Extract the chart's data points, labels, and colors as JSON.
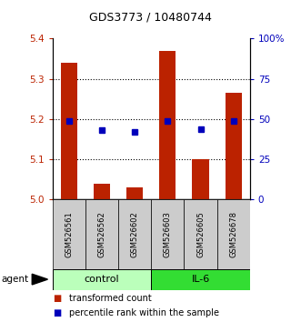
{
  "title": "GDS3773 / 10480744",
  "samples": [
    "GSM526561",
    "GSM526562",
    "GSM526602",
    "GSM526603",
    "GSM526605",
    "GSM526678"
  ],
  "groups": [
    "control",
    "control",
    "control",
    "IL-6",
    "IL-6",
    "IL-6"
  ],
  "group_colors": [
    "#bbffbb",
    "#33dd33"
  ],
  "transformed_counts": [
    5.34,
    5.04,
    5.03,
    5.37,
    5.1,
    5.265
  ],
  "percentile_ranks": [
    49,
    43,
    42,
    49,
    44,
    49
  ],
  "ylim_left": [
    5.0,
    5.4
  ],
  "ylim_right": [
    0,
    100
  ],
  "yticks_left": [
    5.0,
    5.1,
    5.2,
    5.3,
    5.4
  ],
  "yticks_right": [
    0,
    25,
    50,
    75,
    100
  ],
  "ytick_labels_right": [
    "0",
    "25",
    "50",
    "75",
    "100%"
  ],
  "gridline_ticks": [
    5.1,
    5.2,
    5.3
  ],
  "bar_color": "#bb2200",
  "dot_color": "#0000bb",
  "bar_width": 0.5,
  "label_bg": "#cccccc",
  "legend_tc": "transformed count",
  "legend_pr": "percentile rank within the sample",
  "title_fontsize": 9,
  "axis_fontsize": 7.5,
  "sample_fontsize": 6,
  "group_fontsize": 8,
  "legend_fontsize": 7
}
